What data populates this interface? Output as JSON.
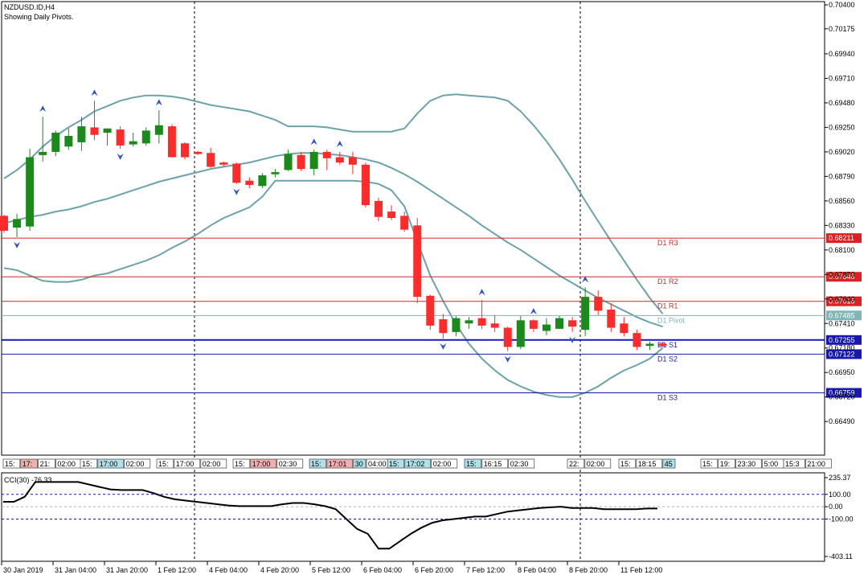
{
  "header": {
    "symbol": "NZDUSD.ID,H4",
    "subtitle": "Showing Daily Pivots."
  },
  "colors": {
    "bull": "#1a8a1a",
    "bear": "#ff2a2a",
    "band": "#6aa3aa",
    "resistance": "#e02020",
    "support": "#1818b0",
    "pivot": "#7fb5b5",
    "fractal": "#3050c0"
  },
  "chart_data": [
    {
      "type": "candlestick",
      "title": "NZDUSD.ID,H4",
      "ylim": [
        0.6625,
        0.704
      ],
      "y_ticks": [
        "0.70400",
        "0.70175",
        "0.69940",
        "0.69710",
        "0.69480",
        "0.69250",
        "0.69020",
        "0.68790",
        "0.68560",
        "0.68330",
        "0.68100",
        "0.67870",
        "0.67640",
        "0.67410",
        "0.67180",
        "0.66950",
        "0.66720",
        "0.66490"
      ],
      "x_ticks": [
        "30 Jan 2019",
        "31 Jan 04:00",
        "31 Jan 20:00",
        "1 Feb 12:00",
        "4 Feb 04:00",
        "4 Feb 20:00",
        "5 Feb 12:00",
        "6 Feb 04:00",
        "6 Feb 20:00",
        "7 Feb 12:00",
        "8 Feb 04:00",
        "8 Feb 20:00",
        "11 Feb 12:00"
      ],
      "candles": [
        {
          "o": 0.6842,
          "h": 0.6843,
          "l": 0.6826,
          "c": 0.6828
        },
        {
          "o": 0.6831,
          "h": 0.6844,
          "l": 0.6822,
          "c": 0.6839
        },
        {
          "o": 0.6832,
          "h": 0.6905,
          "l": 0.6828,
          "c": 0.6897
        },
        {
          "o": 0.6899,
          "h": 0.6935,
          "l": 0.6893,
          "c": 0.6902
        },
        {
          "o": 0.6902,
          "h": 0.6922,
          "l": 0.6898,
          "c": 0.692
        },
        {
          "o": 0.6907,
          "h": 0.6924,
          "l": 0.6904,
          "c": 0.6917
        },
        {
          "o": 0.6911,
          "h": 0.6935,
          "l": 0.6903,
          "c": 0.6926
        },
        {
          "o": 0.6925,
          "h": 0.695,
          "l": 0.6913,
          "c": 0.6918
        },
        {
          "o": 0.692,
          "h": 0.6922,
          "l": 0.6908,
          "c": 0.6924
        },
        {
          "o": 0.6923,
          "h": 0.6926,
          "l": 0.6905,
          "c": 0.6908
        },
        {
          "o": 0.6909,
          "h": 0.692,
          "l": 0.6907,
          "c": 0.6912
        },
        {
          "o": 0.691,
          "h": 0.6925,
          "l": 0.6908,
          "c": 0.6922
        },
        {
          "o": 0.6918,
          "h": 0.6941,
          "l": 0.691,
          "c": 0.6927
        },
        {
          "o": 0.6926,
          "h": 0.6928,
          "l": 0.69,
          "c": 0.6897
        },
        {
          "o": 0.691,
          "h": 0.6911,
          "l": 0.6895,
          "c": 0.6897
        },
        {
          "o": 0.6902,
          "h": 0.6903,
          "l": 0.6899,
          "c": 0.69
        },
        {
          "o": 0.6901,
          "h": 0.6906,
          "l": 0.6887,
          "c": 0.6888
        },
        {
          "o": 0.6892,
          "h": 0.6893,
          "l": 0.6888,
          "c": 0.689
        },
        {
          "o": 0.6891,
          "h": 0.6892,
          "l": 0.6872,
          "c": 0.6873
        },
        {
          "o": 0.6875,
          "h": 0.6878,
          "l": 0.6868,
          "c": 0.6871
        },
        {
          "o": 0.687,
          "h": 0.6882,
          "l": 0.6868,
          "c": 0.688
        },
        {
          "o": 0.6881,
          "h": 0.6886,
          "l": 0.6878,
          "c": 0.6883
        },
        {
          "o": 0.6885,
          "h": 0.6904,
          "l": 0.6884,
          "c": 0.69
        },
        {
          "o": 0.6899,
          "h": 0.6902,
          "l": 0.6884,
          "c": 0.6886
        },
        {
          "o": 0.6886,
          "h": 0.6904,
          "l": 0.688,
          "c": 0.6902
        },
        {
          "o": 0.6902,
          "h": 0.6904,
          "l": 0.6885,
          "c": 0.6896
        },
        {
          "o": 0.6897,
          "h": 0.6902,
          "l": 0.689,
          "c": 0.6892
        },
        {
          "o": 0.6897,
          "h": 0.6902,
          "l": 0.6881,
          "c": 0.689
        },
        {
          "o": 0.689,
          "h": 0.6892,
          "l": 0.685,
          "c": 0.6852
        },
        {
          "o": 0.6856,
          "h": 0.6859,
          "l": 0.6837,
          "c": 0.6841
        },
        {
          "o": 0.6846,
          "h": 0.6852,
          "l": 0.6838,
          "c": 0.684
        },
        {
          "o": 0.6842,
          "h": 0.6846,
          "l": 0.6827,
          "c": 0.6829
        },
        {
          "o": 0.6833,
          "h": 0.684,
          "l": 0.676,
          "c": 0.6766
        },
        {
          "o": 0.6767,
          "h": 0.6768,
          "l": 0.6735,
          "c": 0.6739
        },
        {
          "o": 0.6745,
          "h": 0.675,
          "l": 0.6727,
          "c": 0.6732
        },
        {
          "o": 0.6733,
          "h": 0.6748,
          "l": 0.6729,
          "c": 0.6746
        },
        {
          "o": 0.6741,
          "h": 0.6747,
          "l": 0.6736,
          "c": 0.6744
        },
        {
          "o": 0.6746,
          "h": 0.6763,
          "l": 0.6736,
          "c": 0.6739
        },
        {
          "o": 0.6741,
          "h": 0.6749,
          "l": 0.6733,
          "c": 0.6737
        },
        {
          "o": 0.6737,
          "h": 0.6738,
          "l": 0.6715,
          "c": 0.6719
        },
        {
          "o": 0.6719,
          "h": 0.6748,
          "l": 0.6717,
          "c": 0.6744
        },
        {
          "o": 0.6744,
          "h": 0.6745,
          "l": 0.6733,
          "c": 0.6736
        },
        {
          "o": 0.6734,
          "h": 0.6746,
          "l": 0.673,
          "c": 0.674
        },
        {
          "o": 0.6736,
          "h": 0.6748,
          "l": 0.6736,
          "c": 0.6746
        },
        {
          "o": 0.6744,
          "h": 0.6747,
          "l": 0.6733,
          "c": 0.6738
        },
        {
          "o": 0.6735,
          "h": 0.6775,
          "l": 0.6729,
          "c": 0.6766
        },
        {
          "o": 0.6766,
          "h": 0.6772,
          "l": 0.6749,
          "c": 0.6753
        },
        {
          "o": 0.6754,
          "h": 0.676,
          "l": 0.6733,
          "c": 0.6737
        },
        {
          "o": 0.6741,
          "h": 0.6747,
          "l": 0.6729,
          "c": 0.6732
        },
        {
          "o": 0.6732,
          "h": 0.6735,
          "l": 0.6716,
          "c": 0.6719
        },
        {
          "o": 0.672,
          "h": 0.6724,
          "l": 0.6716,
          "c": 0.6722
        },
        {
          "o": 0.6722,
          "h": 0.6724,
          "l": 0.6719,
          "c": 0.672
        }
      ],
      "bollinger": {
        "upper": [
          0.6877,
          0.6885,
          0.6895,
          0.6907,
          0.6917,
          0.6925,
          0.6932,
          0.694,
          0.6945,
          0.695,
          0.6953,
          0.6955,
          0.6955,
          0.6954,
          0.6952,
          0.6949,
          0.6946,
          0.6944,
          0.6942,
          0.694,
          0.6936,
          0.6932,
          0.6926,
          0.6926,
          0.6926,
          0.6925,
          0.6923,
          0.6921,
          0.6921,
          0.6921,
          0.6921,
          0.6924,
          0.6938,
          0.695,
          0.6955,
          0.6956,
          0.6955,
          0.6954,
          0.6953,
          0.695,
          0.694,
          0.6927,
          0.6912,
          0.6895,
          0.6876,
          0.6856,
          0.6837,
          0.6818,
          0.68,
          0.6782,
          0.6765,
          0.675
        ],
        "middle": [
          0.6835,
          0.6838,
          0.6841,
          0.6843,
          0.6846,
          0.6848,
          0.6851,
          0.6855,
          0.6858,
          0.6862,
          0.6866,
          0.687,
          0.6874,
          0.6877,
          0.688,
          0.6883,
          0.6886,
          0.6888,
          0.689,
          0.6892,
          0.6895,
          0.6898,
          0.69,
          0.6901,
          0.6901,
          0.69,
          0.6899,
          0.6897,
          0.6895,
          0.6892,
          0.6887,
          0.6881,
          0.6874,
          0.6866,
          0.6858,
          0.685,
          0.6842,
          0.6833,
          0.6825,
          0.6817,
          0.681,
          0.6802,
          0.6794,
          0.6786,
          0.6779,
          0.6772,
          0.6765,
          0.6759,
          0.6753,
          0.6747,
          0.6742,
          0.6738
        ],
        "lower": [
          0.6793,
          0.6791,
          0.6786,
          0.6781,
          0.678,
          0.678,
          0.6782,
          0.6786,
          0.6788,
          0.6792,
          0.6796,
          0.68,
          0.6805,
          0.6812,
          0.6818,
          0.6825,
          0.6833,
          0.684,
          0.6845,
          0.685,
          0.686,
          0.6875,
          0.6875,
          0.6875,
          0.6875,
          0.6875,
          0.6875,
          0.6875,
          0.6874,
          0.6872,
          0.6866,
          0.6851,
          0.6818,
          0.6786,
          0.6762,
          0.674,
          0.6722,
          0.6708,
          0.6697,
          0.6688,
          0.6682,
          0.6677,
          0.6674,
          0.6672,
          0.6672,
          0.6676,
          0.6682,
          0.669,
          0.6697,
          0.6702,
          0.6708,
          0.6718
        ]
      },
      "fractals_up": [
        3,
        7,
        12,
        24,
        26,
        37,
        41,
        45
      ],
      "fractals_down": [
        1,
        9,
        18,
        34,
        39,
        44
      ],
      "pivots": [
        {
          "name": "D1 R3",
          "value": 0.68211,
          "label": "0.68211",
          "kind": "resistance"
        },
        {
          "name": "D1 R2",
          "value": 0.67848,
          "label": "0.67848",
          "kind": "resistance"
        },
        {
          "name": "D1 R1",
          "value": 0.67618,
          "label": "0.67618",
          "kind": "resistance"
        },
        {
          "name": "D1 Pivot",
          "value": 0.67485,
          "label": "0.67485",
          "kind": "pivot"
        },
        {
          "name": "D1 S1",
          "value": 0.67255,
          "label": "0.67255",
          "kind": "support"
        },
        {
          "name": "D1 S2",
          "value": 0.67122,
          "label": "0.67122",
          "kind": "support"
        },
        {
          "name": "D1 S3",
          "value": 0.66759,
          "label": "0.66759",
          "kind": "support"
        }
      ],
      "session_labels": [
        {
          "x": "15:",
          "c": "#ffffff"
        },
        {
          "x": "17:",
          "c": "#f0b0b0"
        },
        {
          "x": "21:",
          "c": "#ffffff"
        },
        {
          "x": "02:00",
          "c": "#ffffff"
        },
        {
          "x": "15:",
          "c": "#ffffff"
        },
        {
          "x": "17:00",
          "c": "#b0e0e8"
        },
        {
          "x": "02:00",
          "c": "#ffffff"
        },
        {
          "x": "15:",
          "c": "#ffffff"
        },
        {
          "x": "17:00",
          "c": "#ffffff"
        },
        {
          "x": "02:00",
          "c": "#ffffff"
        },
        {
          "x": "15:",
          "c": "#ffffff"
        },
        {
          "x": "17:00",
          "c": "#f0b0b0"
        },
        {
          "x": "02:30",
          "c": "#ffffff"
        },
        {
          "x": "15:",
          "c": "#b0e0e8"
        },
        {
          "x": "17:01",
          "c": "#f0b0b0"
        },
        {
          "x": "30",
          "c": "#b0e0e8"
        },
        {
          "x": "04:00",
          "c": "#ffffff"
        },
        {
          "x": "15:",
          "c": "#b0e0e8"
        },
        {
          "x": "17:02",
          "c": "#b0e0e8"
        },
        {
          "x": "02:00",
          "c": "#ffffff"
        },
        {
          "x": "15:",
          "c": "#b0e0e8"
        },
        {
          "x": "16:15",
          "c": "#ffffff"
        },
        {
          "x": "02:30",
          "c": "#ffffff"
        },
        {
          "x": "22:",
          "c": "#ffffff"
        },
        {
          "x": "02:00",
          "c": "#ffffff"
        },
        {
          "x": "15:",
          "c": "#ffffff"
        },
        {
          "x": "18:15",
          "c": "#ffffff"
        },
        {
          "x": "45",
          "c": "#b0e0e8"
        },
        {
          "x": "15:",
          "c": "#ffffff"
        },
        {
          "x": "19:",
          "c": "#ffffff"
        },
        {
          "x": "23:30",
          "c": "#ffffff"
        },
        {
          "x": "5:00",
          "c": "#ffffff"
        },
        {
          "x": "15:3",
          "c": "#ffffff"
        },
        {
          "x": "21:00",
          "c": "#ffffff"
        }
      ]
    },
    {
      "type": "line",
      "title": "CCI(30) -76.33",
      "ylim": [
        -403.11,
        235.37
      ],
      "y_ticks": [
        "235.37",
        "100.00",
        "0.00",
        "-100.00",
        "-403.11"
      ],
      "values": [
        40,
        40,
        80,
        200,
        200,
        200,
        200,
        200,
        180,
        160,
        140,
        135,
        135,
        135,
        110,
        80,
        60,
        50,
        40,
        30,
        20,
        10,
        5,
        5,
        5,
        5,
        20,
        30,
        30,
        20,
        5,
        -20,
        -100,
        -180,
        -220,
        -340,
        -340,
        -280,
        -220,
        -170,
        -130,
        -110,
        -100,
        -90,
        -80,
        -80,
        -60,
        -40,
        -30,
        -20,
        -10,
        -5,
        0,
        -10,
        -10,
        -10,
        -20,
        -20,
        -20,
        -20,
        -15,
        -15
      ]
    }
  ]
}
